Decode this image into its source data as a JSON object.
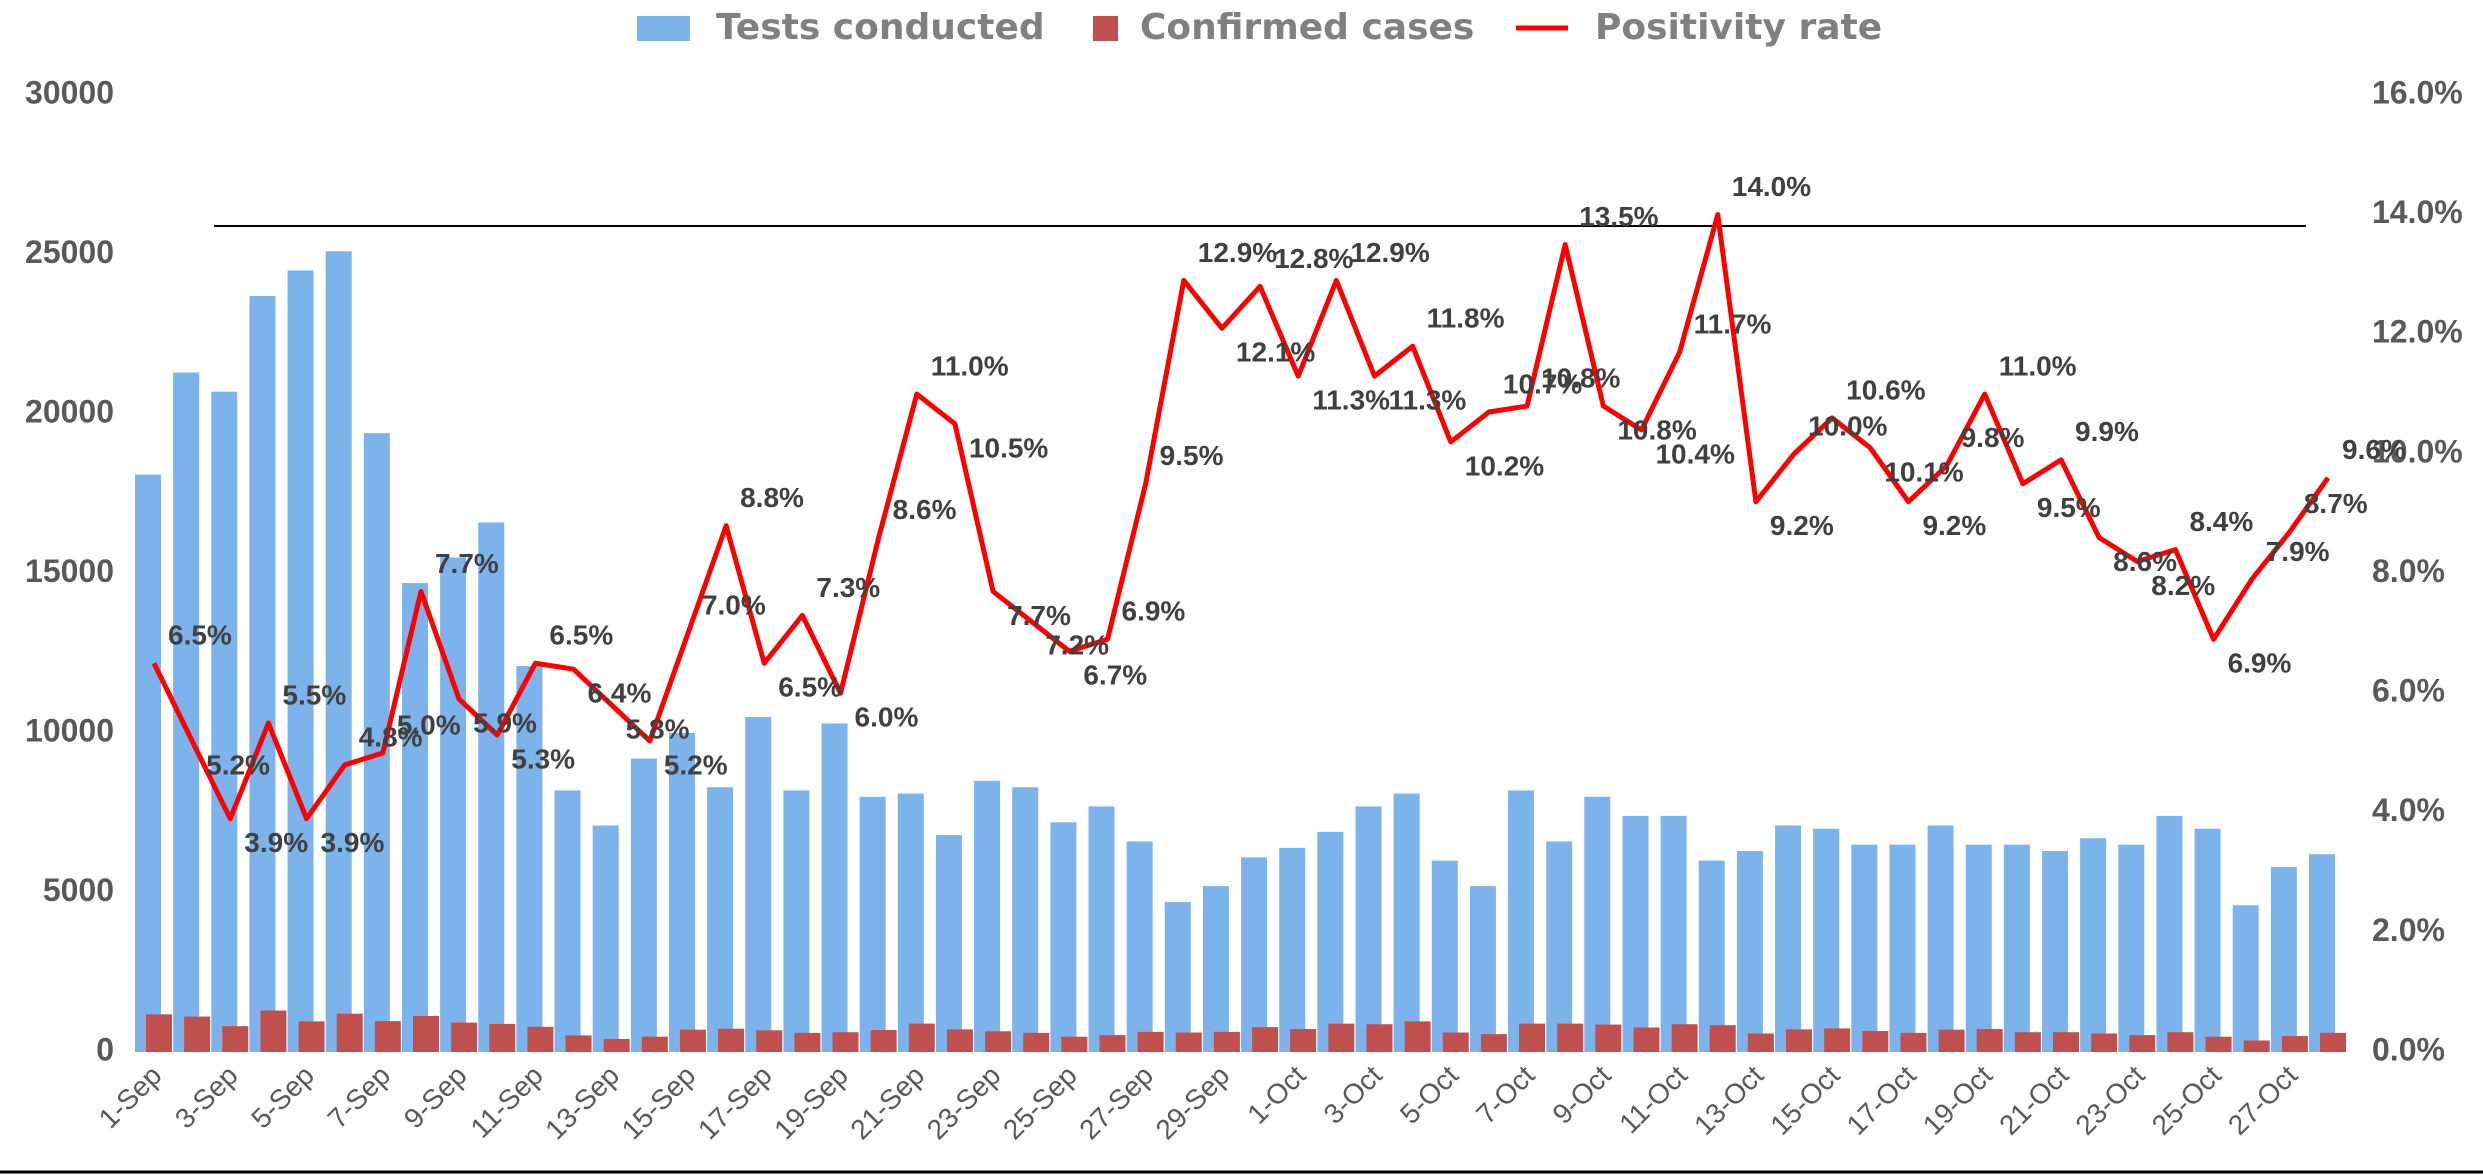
{
  "chart_data": {
    "type": "bar",
    "categories": [
      "1-Sep",
      null,
      "3-Sep",
      null,
      "5-Sep",
      null,
      "7-Sep",
      null,
      "9-Sep",
      null,
      "11-Sep",
      null,
      "13-Sep",
      null,
      "15-Sep",
      null,
      "17-Sep",
      null,
      "19-Sep",
      null,
      "21-Sep",
      null,
      "23-Sep",
      null,
      "25-Sep",
      null,
      "27-Sep",
      null,
      "29-Sep",
      null,
      "1-Oct",
      null,
      "3-Oct",
      null,
      "5-Oct",
      null,
      "7-Oct",
      null,
      "9-Oct",
      null,
      "11-Oct",
      null,
      "13-Oct",
      null,
      "15-Oct",
      null,
      "17-Oct",
      null,
      "19-Oct",
      null,
      "21-Oct",
      null,
      "23-Oct",
      null,
      "25-Oct",
      null,
      "27-Oct",
      null
    ],
    "series": [
      {
        "name": "Tests conducted",
        "type": "bar",
        "color": "#7cb3ea",
        "values": [
          18100,
          21300,
          20700,
          23700,
          24500,
          25100,
          19400,
          14700,
          15500,
          16600,
          12100,
          8200,
          7100,
          9200,
          10000,
          8300,
          10500,
          8200,
          10300,
          8000,
          8100,
          6800,
          8500,
          8300,
          7200,
          7700,
          6600,
          4700,
          5200,
          6100,
          6400,
          6900,
          7700,
          8100,
          6000,
          5200,
          8200,
          6600,
          8000,
          7400,
          7400,
          6000,
          6300,
          7100,
          7000,
          6500,
          6500,
          7100,
          6500,
          6500,
          6300,
          6700,
          6500,
          7400,
          7000,
          4600,
          5800,
          6200
        ]
      },
      {
        "name": "Confirmed cases",
        "type": "bar",
        "color": "#c0504d",
        "values": [
          1180,
          1110,
          810,
          1300,
          960,
          1200,
          970,
          1130,
          920,
          880,
          790,
          520,
          410,
          480,
          700,
          730,
          680,
          600,
          620,
          690,
          890,
          710,
          650,
          600,
          480,
          530,
          630,
          610,
          630,
          780,
          720,
          890,
          870,
          960,
          610,
          560,
          890,
          890,
          860,
          770,
          870,
          840,
          580,
          710,
          740,
          660,
          600,
          700,
          720,
          620,
          620,
          580,
          530,
          620,
          480,
          360,
          500,
          600
        ]
      },
      {
        "name": "Positivity rate",
        "type": "line",
        "color": "#ff0000",
        "axis": "y2",
        "values": [
          6.5,
          5.2,
          3.9,
          5.5,
          3.9,
          4.8,
          5.0,
          7.7,
          5.9,
          5.3,
          6.5,
          6.4,
          5.8,
          5.2,
          7.0,
          8.8,
          6.5,
          7.3,
          6.0,
          8.6,
          11.0,
          10.5,
          7.7,
          7.2,
          6.7,
          6.9,
          9.5,
          12.9,
          12.1,
          12.8,
          11.3,
          12.9,
          11.3,
          11.8,
          10.2,
          10.7,
          10.8,
          13.5,
          10.8,
          10.4,
          11.7,
          14.0,
          9.2,
          10.0,
          10.6,
          10.1,
          9.2,
          9.8,
          11.0,
          9.5,
          9.9,
          8.6,
          8.2,
          8.4,
          6.9,
          7.9,
          8.7,
          9.6
        ],
        "value_labels": [
          "6.5%",
          "5.2%",
          "3.9%",
          "5.5%",
          "3.9%",
          "4.8%",
          "5.0%",
          "7.7%",
          "5.9%",
          "5.3%",
          "6.5%",
          "6.4%",
          "5.8%",
          "5.2%",
          "7.0%",
          "8.8%",
          "6.5%",
          "7.3%",
          "6.0%",
          "8.6%",
          "11.0%",
          "10.5%",
          "7.7%",
          "7.2%",
          "6.7%",
          "6.9%",
          "9.5%",
          "12.9%",
          "12.1%",
          "12.8%",
          "11.3%",
          "12.9%",
          "11.3%",
          "11.8%",
          "10.2%",
          "10.7%",
          "10.8%",
          "13.5%",
          "10.8%",
          "10.4%",
          "11.7%",
          "14.0%",
          "9.2%",
          "10.0%",
          "10.6%",
          "10.1%",
          "9.2%",
          "9.8%",
          "11.0%",
          "9.5%",
          "9.9%",
          "8.6%",
          "8.2%",
          "8.4%",
          "6.9%",
          "7.9%",
          "8.7%",
          "9.6%"
        ]
      }
    ],
    "ylim": [
      0,
      30000
    ],
    "yticks": [
      0,
      5000,
      10000,
      15000,
      20000,
      25000,
      30000
    ],
    "y2lim": [
      0,
      16
    ],
    "y2ticks": [
      {
        "value": 0,
        "label": "0.0%"
      },
      {
        "value": 2,
        "label": "2.0%"
      },
      {
        "value": 4,
        "label": "4.0%"
      },
      {
        "value": 6,
        "label": "6.0%"
      },
      {
        "value": 8,
        "label": "8.0%"
      },
      {
        "value": 10,
        "label": "10.0%"
      },
      {
        "value": 12,
        "label": "12.0%"
      },
      {
        "value": 14,
        "label": "14.0%"
      },
      {
        "value": 16,
        "label": "16.0%"
      }
    ],
    "legend": "top"
  }
}
